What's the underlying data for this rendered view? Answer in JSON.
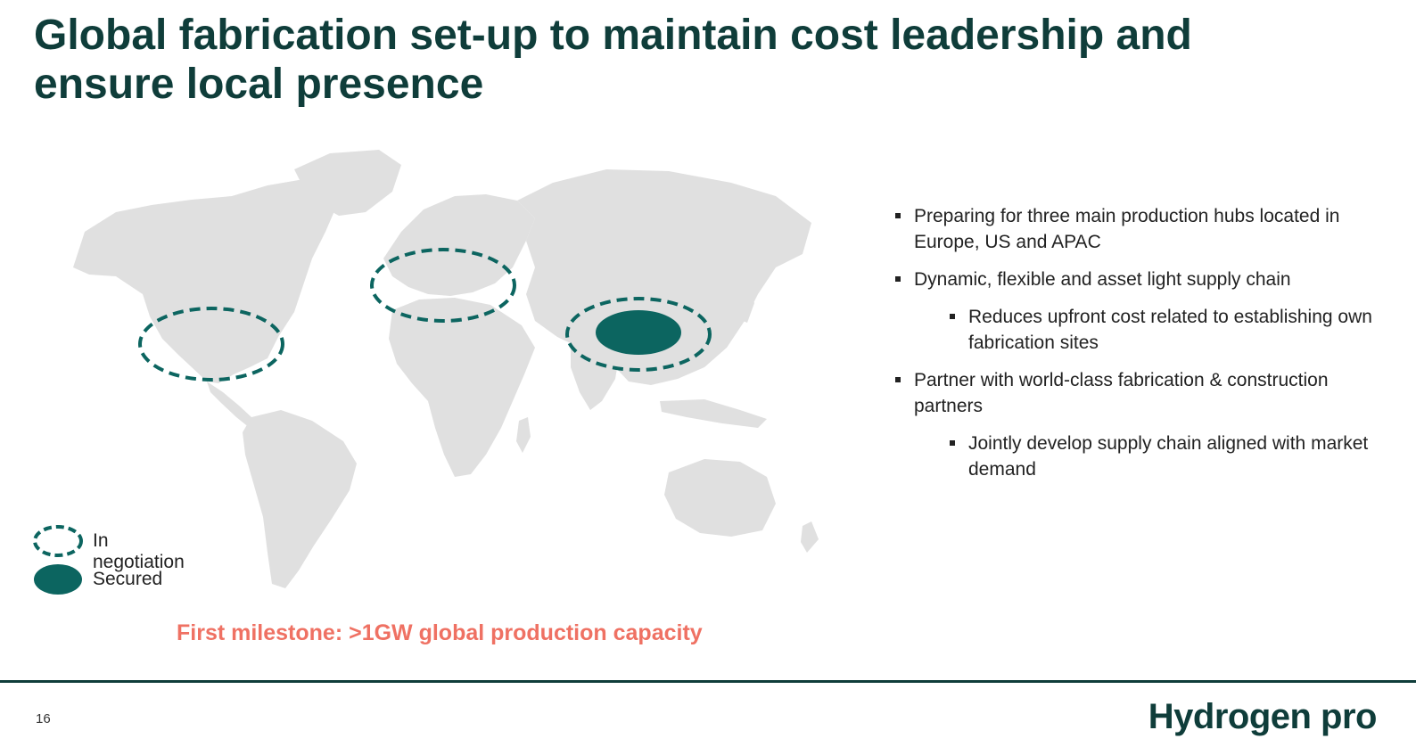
{
  "slide": {
    "title": "Global fabrication set-up to maintain cost leadership and ensure local presence",
    "page_number": "16",
    "logo_text": "Hydrogen pro"
  },
  "map": {
    "land_color": "#e0e0e0",
    "marker_color": "#0c6560",
    "regions": [
      {
        "name": "North America",
        "status": "In negotiation"
      },
      {
        "name": "Europe",
        "status": "In negotiation"
      },
      {
        "name": "Asia",
        "status": "In negotiation"
      },
      {
        "name": "China",
        "status": "Secured"
      }
    ]
  },
  "bullets": [
    {
      "text": "Preparing for three main production hubs located in Europe, US and APAC",
      "level": 1
    },
    {
      "text": "Dynamic, flexible and asset light supply chain",
      "level": 1
    },
    {
      "text": "Reduces upfront cost related to establishing own fabrication sites",
      "level": 2
    },
    {
      "text": "Partner with world-class fabrication & construction partners",
      "level": 1
    },
    {
      "text": "Jointly develop supply chain aligned with market demand",
      "level": 2
    }
  ],
  "legend": {
    "negotiation_label": "In negotiation",
    "secured_label": "Secured"
  },
  "milestone": "First milestone: >1GW global production capacity",
  "colors": {
    "title": "#0f3d3a",
    "accent": "#0c6560",
    "milestone": "#ef7163"
  }
}
